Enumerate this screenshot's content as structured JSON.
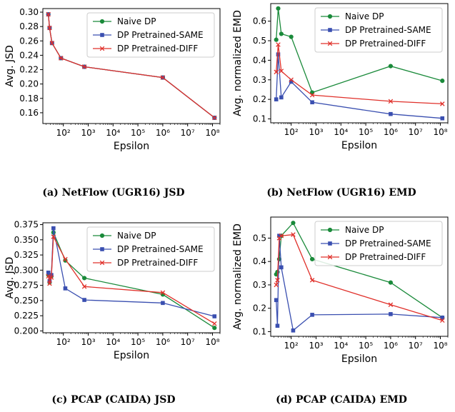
{
  "chart_data": [
    {
      "type": "line",
      "caption": "(a) NetFlow (UGR16) JSD",
      "xlabel": "Epsilon",
      "ylabel": "Avg. JSD",
      "xscale": "log",
      "xlim": [
        15,
        200000000
      ],
      "ylim": [
        0.145,
        0.305
      ],
      "yticks": [
        "0.16",
        "0.18",
        "0.20",
        "0.22",
        "0.24",
        "0.26",
        "0.28",
        "0.30"
      ],
      "xticks": [
        "10²",
        "10³",
        "10⁴",
        "10⁵",
        "10⁶",
        "10⁷",
        "10⁸"
      ],
      "legend": "top-right",
      "grid": false,
      "series": [
        {
          "name": "Naive DP",
          "color": "#1a8a3a",
          "marker": "circle",
          "x": [
            25,
            28,
            35,
            80,
            700,
            1000000,
            120000000
          ],
          "y": [
            0.297,
            0.278,
            0.257,
            0.236,
            0.224,
            0.209,
            0.153
          ]
        },
        {
          "name": "DP Pretrained-SAME",
          "color": "#3a4fb0",
          "marker": "square",
          "x": [
            25,
            28,
            35,
            80,
            700,
            1000000,
            120000000
          ],
          "y": [
            0.297,
            0.278,
            0.257,
            0.236,
            0.224,
            0.209,
            0.153
          ]
        },
        {
          "name": "DP Pretrained-DIFF",
          "color": "#e0302a",
          "marker": "x",
          "x": [
            25,
            28,
            35,
            80,
            700,
            1000000,
            120000000
          ],
          "y": [
            0.297,
            0.278,
            0.257,
            0.236,
            0.224,
            0.209,
            0.153
          ]
        }
      ]
    },
    {
      "type": "line",
      "caption": "(b) NetFlow (UGR16) EMD",
      "xlabel": "Epsilon",
      "ylabel": "Avg. normalized EMD",
      "xscale": "log",
      "xlim": [
        15,
        200000000
      ],
      "ylim": [
        0.08,
        0.69
      ],
      "yticks": [
        "0.1",
        "0.2",
        "0.3",
        "0.4",
        "0.5",
        "0.6"
      ],
      "xticks": [
        "10²",
        "10³",
        "10⁴",
        "10⁵",
        "10⁶",
        "10⁷",
        "10⁸"
      ],
      "legend": "top-right",
      "grid": false,
      "series": [
        {
          "name": "Naive DP",
          "color": "#1a8a3a",
          "marker": "circle",
          "x": [
            25,
            30,
            40,
            100,
            700,
            1000000,
            120000000
          ],
          "y": [
            0.505,
            0.665,
            0.535,
            0.52,
            0.235,
            0.37,
            0.295
          ]
        },
        {
          "name": "DP Pretrained-SAME",
          "color": "#3a4fb0",
          "marker": "square",
          "x": [
            25,
            30,
            40,
            100,
            700,
            1000000,
            120000000
          ],
          "y": [
            0.2,
            0.43,
            0.21,
            0.29,
            0.185,
            0.125,
            0.103
          ]
        },
        {
          "name": "DP Pretrained-DIFF",
          "color": "#e0302a",
          "marker": "x",
          "x": [
            25,
            30,
            40,
            100,
            700,
            1000000,
            120000000
          ],
          "y": [
            0.34,
            0.48,
            0.345,
            0.3,
            0.222,
            0.19,
            0.177
          ]
        }
      ]
    },
    {
      "type": "line",
      "caption": "(c) PCAP (CAIDA) JSD",
      "xlabel": "Epsilon",
      "ylabel": "Avg. JSD",
      "xscale": "log",
      "xlim": [
        15,
        200000000
      ],
      "ylim": [
        0.197,
        0.378
      ],
      "yticks": [
        "0.200",
        "0.225",
        "0.250",
        "0.275",
        "0.300",
        "0.325",
        "0.350",
        "0.375"
      ],
      "xticks": [
        "10²",
        "10³",
        "10⁴",
        "10⁵",
        "10⁶",
        "10⁷",
        "10⁸"
      ],
      "legend": "top-right",
      "grid": false,
      "series": [
        {
          "name": "Naive DP",
          "color": "#1a8a3a",
          "marker": "circle",
          "x": [
            25,
            28,
            33,
            40,
            120,
            700,
            1000000,
            120000000
          ],
          "y": [
            0.292,
            0.28,
            0.29,
            0.362,
            0.316,
            0.287,
            0.26,
            0.205
          ]
        },
        {
          "name": "DP Pretrained-SAME",
          "color": "#3a4fb0",
          "marker": "square",
          "x": [
            25,
            28,
            33,
            40,
            120,
            700,
            1000000,
            120000000
          ],
          "y": [
            0.296,
            0.282,
            0.292,
            0.369,
            0.27,
            0.251,
            0.246,
            0.224
          ]
        },
        {
          "name": "DP Pretrained-DIFF",
          "color": "#e0302a",
          "marker": "x",
          "x": [
            25,
            28,
            33,
            40,
            120,
            700,
            1000000,
            120000000
          ],
          "y": [
            0.29,
            0.278,
            0.288,
            0.355,
            0.318,
            0.273,
            0.263,
            0.212
          ]
        }
      ]
    },
    {
      "type": "line",
      "caption": "(d) PCAP (CAIDA) EMD",
      "xlabel": "Epsilon",
      "ylabel": "Avg. normalized EMD",
      "xscale": "log",
      "xlim": [
        15,
        200000000
      ],
      "ylim": [
        0.08,
        0.59
      ],
      "yticks": [
        "0.1",
        "0.2",
        "0.3",
        "0.4",
        "0.5"
      ],
      "xticks": [
        "10²",
        "10³",
        "10⁴",
        "10⁵",
        "10⁶",
        "10⁷",
        "10⁸"
      ],
      "legend": "top-right",
      "grid": false,
      "series": [
        {
          "name": "Naive DP",
          "color": "#1a8a3a",
          "marker": "circle",
          "x": [
            25,
            28,
            33,
            40,
            120,
            700,
            1000000,
            120000000
          ],
          "y": [
            0.345,
            0.355,
            0.41,
            0.51,
            0.565,
            0.41,
            0.31,
            0.16
          ]
        },
        {
          "name": "DP Pretrained-SAME",
          "color": "#3a4fb0",
          "marker": "square",
          "x": [
            25,
            28,
            33,
            40,
            120,
            700,
            1000000,
            120000000
          ],
          "y": [
            0.235,
            0.125,
            0.51,
            0.375,
            0.105,
            0.172,
            0.175,
            0.16
          ]
        },
        {
          "name": "DP Pretrained-DIFF",
          "color": "#e0302a",
          "marker": "x",
          "x": [
            25,
            28,
            33,
            40,
            120,
            700,
            1000000,
            120000000
          ],
          "y": [
            0.3,
            0.32,
            0.5,
            0.51,
            0.515,
            0.32,
            0.215,
            0.148
          ]
        }
      ]
    }
  ]
}
